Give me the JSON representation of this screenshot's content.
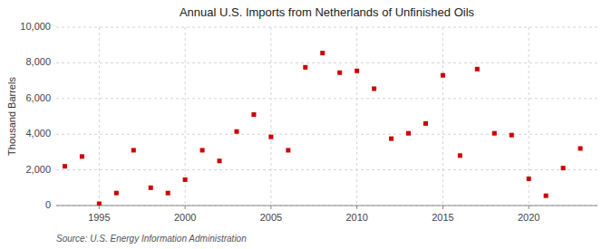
{
  "chart_data": {
    "type": "scatter",
    "title": "Annual U.S. Imports from Netherlands of Unfinished Oils",
    "y_label": "Thousand Barrels",
    "source": "Source: U.S. Energy Information Administration",
    "x": [
      1993,
      1994,
      1995,
      1996,
      1997,
      1998,
      1999,
      2000,
      2001,
      2002,
      2003,
      2004,
      2005,
      2006,
      2007,
      2008,
      2009,
      2010,
      2011,
      2012,
      2013,
      2014,
      2015,
      2016,
      2017,
      2018,
      2019,
      2020,
      2021,
      2022,
      2023
    ],
    "values": [
      2200,
      2750,
      100,
      700,
      3100,
      1000,
      700,
      1450,
      3100,
      2500,
      4150,
      5100,
      3850,
      3100,
      7750,
      8550,
      7450,
      7550,
      6550,
      3750,
      4050,
      4600,
      7300,
      2800,
      7650,
      4050,
      3950,
      1500,
      550,
      2100,
      3200
    ],
    "color": "#cc0000",
    "marker": "square",
    "xlim": [
      1992.5,
      2024
    ],
    "xticks": [
      1995,
      2000,
      2005,
      2010,
      2015,
      2020
    ],
    "ylim": [
      0,
      10000
    ],
    "yticks": [
      0,
      {
        "value": 2000,
        "label": "2,000"
      },
      {
        "value": 4000,
        "label": "4,000"
      },
      {
        "value": 6000,
        "label": "6,000"
      },
      {
        "value": 8000,
        "label": "8,000"
      },
      {
        "value": 10000,
        "label": "10,000"
      }
    ],
    "grid": true
  }
}
